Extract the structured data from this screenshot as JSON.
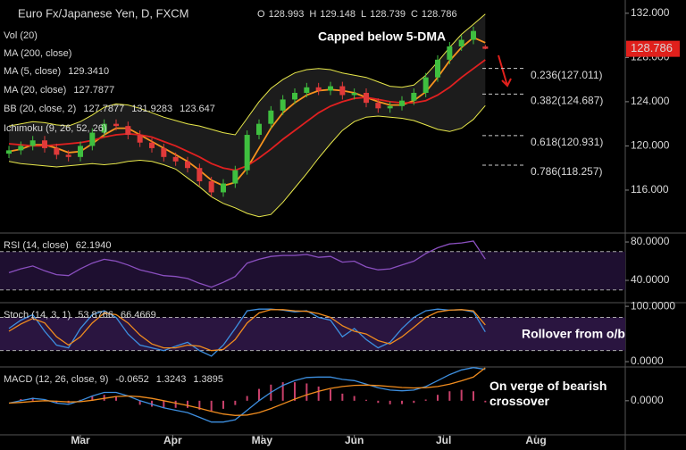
{
  "chart_data": [
    {
      "type": "candlestick",
      "title": "Euro Fx/Japanese Yen, D, FXCM",
      "ohlc_legend": [
        {
          "key": "O",
          "label": "128.993"
        },
        {
          "key": "H",
          "label": "129.148"
        },
        {
          "key": "L",
          "label": "128.739"
        },
        {
          "key": "C",
          "label": "128.786"
        }
      ],
      "last_price_label": "128.786",
      "indicators_off": [
        "Vol (20)",
        "MA (200, close)",
        "Ichimoku (9, 26, 52, 26)"
      ],
      "x": [
        36,
        40,
        44,
        48,
        52,
        56,
        60,
        64,
        68,
        72,
        76,
        80,
        84,
        88,
        92,
        96,
        100,
        104,
        108,
        112,
        116,
        120,
        124,
        128,
        132,
        136,
        140,
        144,
        148,
        152,
        156,
        160,
        164,
        168,
        172,
        176,
        180,
        184,
        188,
        192,
        196
      ],
      "xlim": [
        33,
        243
      ],
      "xticks": [
        {
          "value": 60,
          "label": "Mar"
        },
        {
          "value": 91,
          "label": "Apr"
        },
        {
          "value": 121,
          "label": "May"
        },
        {
          "value": 152,
          "label": "Jun"
        },
        {
          "value": 182,
          "label": "Jul"
        },
        {
          "value": 213,
          "label": "Aug"
        }
      ],
      "open": [
        119.3,
        119.6,
        120.0,
        120.5,
        119.8,
        119.2,
        119.0,
        120.0,
        121.2,
        122.0,
        121.8,
        121.0,
        120.3,
        119.8,
        119.0,
        118.6,
        118.0,
        116.8,
        115.8,
        116.6,
        117.8,
        121.0,
        122.0,
        123.2,
        124.2,
        124.8,
        125.3,
        125.0,
        125.4,
        124.6,
        124.8,
        123.9,
        123.4,
        123.6,
        124.1,
        124.8,
        126.2,
        127.8,
        129.0,
        129.6,
        128.993
      ],
      "high": [
        120.0,
        120.4,
        120.9,
        120.9,
        120.2,
        119.6,
        120.4,
        121.6,
        122.4,
        122.4,
        122.2,
        121.4,
        120.7,
        120.2,
        119.4,
        119.0,
        118.4,
        117.2,
        117.0,
        118.2,
        121.4,
        122.4,
        123.6,
        124.6,
        125.2,
        125.7,
        125.7,
        125.8,
        125.8,
        125.2,
        125.2,
        124.3,
        124.0,
        124.5,
        125.2,
        126.6,
        128.2,
        129.4,
        130.0,
        130.8,
        129.148
      ],
      "low": [
        118.9,
        119.2,
        119.6,
        119.4,
        118.8,
        118.6,
        118.6,
        119.6,
        120.8,
        121.4,
        120.6,
        119.9,
        119.4,
        118.6,
        118.2,
        117.6,
        116.4,
        115.4,
        115.4,
        116.2,
        117.4,
        120.6,
        121.6,
        122.8,
        123.8,
        124.4,
        124.6,
        124.6,
        124.2,
        124.2,
        123.5,
        123.0,
        123.0,
        123.2,
        123.7,
        124.4,
        125.8,
        127.4,
        128.6,
        129.2,
        128.739
      ],
      "close": [
        119.6,
        120.0,
        120.5,
        119.8,
        119.2,
        119.0,
        120.0,
        121.2,
        122.0,
        121.8,
        121.0,
        120.3,
        119.8,
        119.0,
        118.6,
        118.0,
        116.8,
        115.8,
        116.6,
        117.8,
        121.0,
        122.0,
        123.2,
        124.2,
        124.8,
        125.3,
        125.0,
        125.4,
        124.6,
        124.8,
        123.9,
        123.4,
        123.6,
        124.1,
        124.8,
        126.2,
        127.8,
        129.0,
        129.6,
        130.4,
        128.786
      ],
      "up_color": "#3fbf3f",
      "down_color": "#e03a3a",
      "overlays": [
        {
          "name": "MA (5, close)",
          "label": "129.3410",
          "color": "#f7931e",
          "values": [
            119.5,
            119.7,
            120.1,
            120.1,
            119.8,
            119.4,
            119.5,
            120.2,
            121.0,
            121.6,
            121.6,
            121.0,
            120.4,
            119.8,
            119.2,
            118.6,
            117.8,
            116.9,
            116.4,
            116.7,
            118.0,
            119.8,
            121.6,
            123.0,
            123.9,
            124.6,
            125.0,
            125.1,
            125.0,
            124.8,
            124.4,
            124.0,
            123.7,
            123.7,
            124.1,
            124.9,
            126.2,
            127.7,
            128.9,
            129.8,
            129.341
          ]
        },
        {
          "name": "MA (20, close)",
          "label": "127.7877",
          "color": "#e02020",
          "values": [
            120.2,
            120.1,
            120.0,
            120.0,
            120.1,
            120.2,
            120.3,
            120.5,
            120.8,
            121.0,
            121.1,
            121.0,
            120.8,
            120.4,
            120.0,
            119.5,
            119.0,
            118.4,
            118.0,
            117.8,
            118.2,
            118.9,
            119.7,
            120.6,
            121.4,
            122.2,
            123.0,
            123.6,
            124.0,
            124.3,
            124.4,
            124.2,
            124.0,
            123.9,
            123.9,
            124.1,
            124.6,
            125.3,
            126.2,
            127.0,
            127.7877
          ]
        }
      ],
      "bands": {
        "name": "BB (20, close, 2)",
        "labels": [
          "127.7877",
          "131.9283",
          "123.647"
        ],
        "color": "#e8e84a",
        "upper": [
          121.8,
          122.0,
          122.2,
          122.1,
          121.9,
          121.8,
          122.2,
          122.8,
          123.5,
          123.8,
          123.7,
          123.4,
          123.0,
          122.6,
          122.3,
          122.0,
          121.8,
          121.5,
          121.2,
          121.0,
          122.5,
          124.0,
          125.2,
          126.0,
          126.6,
          126.9,
          127.0,
          126.9,
          126.6,
          126.4,
          126.2,
          125.8,
          125.4,
          125.3,
          125.5,
          126.4,
          127.6,
          128.9,
          130.1,
          131.0,
          131.9283
        ],
        "lower": [
          118.6,
          118.4,
          118.3,
          118.2,
          118.1,
          118.2,
          118.3,
          118.4,
          118.3,
          118.4,
          118.6,
          118.7,
          118.6,
          118.3,
          117.9,
          117.1,
          116.3,
          115.4,
          114.8,
          114.4,
          113.9,
          113.6,
          113.8,
          114.9,
          116.2,
          117.5,
          118.9,
          120.2,
          121.4,
          122.2,
          122.6,
          122.7,
          122.6,
          122.5,
          122.3,
          121.9,
          121.5,
          121.3,
          121.6,
          122.4,
          123.647
        ]
      },
      "levels": [
        {
          "label": "0.236(127.011)",
          "value": 127.011
        },
        {
          "label": "0.382(124.687)",
          "value": 124.687
        },
        {
          "label": "0.618(120.931)",
          "value": 120.931
        },
        {
          "label": "0.786(118.257)",
          "value": 118.257
        }
      ],
      "annotation": "Capped below 5-DMA",
      "ylim": [
        112.2,
        133.2
      ],
      "yticks": [
        {
          "value": 116,
          "label": "116.000"
        },
        {
          "value": 120,
          "label": "120.000"
        },
        {
          "value": 124,
          "label": "124.000"
        },
        {
          "value": 128,
          "label": "128.000"
        },
        {
          "value": 132,
          "label": "132.000"
        }
      ]
    },
    {
      "type": "line",
      "title": "RSI (14, close)",
      "ylim": [
        17.7,
        88.4
      ],
      "yticks": [
        {
          "value": 40,
          "label": "40.0000"
        },
        {
          "value": 80,
          "label": "80.0000"
        }
      ],
      "bounds": [
        30,
        70
      ],
      "band_color": "#1e0f30",
      "series": [
        {
          "name": "RSI",
          "label": "62.1940",
          "color": "#8a4fbf",
          "values": [
            48,
            52,
            55,
            50,
            46,
            45,
            52,
            58,
            62,
            60,
            56,
            51,
            48,
            45,
            44,
            42,
            37,
            33,
            38,
            44,
            58,
            62,
            65,
            66,
            66,
            67,
            64,
            65,
            59,
            60,
            54,
            51,
            52,
            56,
            60,
            68,
            74,
            78,
            79,
            81,
            62.194
          ]
        }
      ]
    },
    {
      "type": "line",
      "title": "Stoch (14, 3, 1)",
      "ylim": [
        -8,
        105
      ],
      "yticks": [
        {
          "value": 0,
          "label": "0.0000"
        },
        {
          "value": 100,
          "label": "100.0000"
        }
      ],
      "bounds": [
        20,
        80
      ],
      "band_color": "#2a1540",
      "annotation": "Rollover from o/b",
      "series": [
        {
          "name": "%K",
          "label": "53.8766",
          "color": "#3d8fe0",
          "values": [
            60,
            75,
            85,
            55,
            30,
            25,
            60,
            85,
            92,
            80,
            50,
            30,
            25,
            20,
            28,
            35,
            20,
            10,
            30,
            60,
            92,
            95,
            95,
            93,
            90,
            92,
            80,
            75,
            45,
            60,
            40,
            25,
            35,
            60,
            80,
            92,
            95,
            93,
            94,
            90,
            53.8766
          ]
        },
        {
          "name": "%D",
          "label": "66.4669",
          "color": "#f08c1e",
          "values": [
            55,
            68,
            78,
            70,
            45,
            30,
            45,
            70,
            88,
            85,
            70,
            48,
            32,
            25,
            25,
            30,
            28,
            20,
            22,
            40,
            70,
            88,
            94,
            94,
            92,
            91,
            87,
            80,
            65,
            55,
            50,
            38,
            32,
            45,
            62,
            80,
            90,
            93,
            94,
            92,
            66.4669
          ]
        }
      ]
    },
    {
      "type": "macd",
      "title": "MACD (12, 26, close, 9)",
      "ylim": [
        -1.4,
        1.35
      ],
      "yticks": [
        {
          "value": 0,
          "label": "0.0000"
        }
      ],
      "annotation": "On verge of bearish crossover",
      "histogram": {
        "label": "-0.0652",
        "color": "#c8406a",
        "values": [
          0,
          0.07,
          0.13,
          0.05,
          -0.08,
          -0.1,
          0.04,
          0.18,
          0.25,
          0.17,
          0,
          -0.17,
          -0.25,
          -0.3,
          -0.3,
          -0.3,
          -0.38,
          -0.45,
          -0.34,
          -0.18,
          0.2,
          0.5,
          0.68,
          0.78,
          0.78,
          0.73,
          0.6,
          0.48,
          0.3,
          0.2,
          0.04,
          -0.09,
          -0.15,
          -0.14,
          -0.09,
          0.05,
          0.25,
          0.4,
          0.46,
          0.4,
          -0.0652
        ]
      },
      "series": [
        {
          "name": "MACD",
          "label": "1.3243",
          "color": "#3d8fe0",
          "values": [
            -0.1,
            0,
            0.1,
            0.05,
            -0.1,
            -0.15,
            0,
            0.2,
            0.35,
            0.35,
            0.2,
            0,
            -0.15,
            -0.3,
            -0.4,
            -0.5,
            -0.7,
            -0.9,
            -0.9,
            -0.8,
            -0.4,
            0,
            0.35,
            0.65,
            0.85,
            0.98,
            1.0,
            1.0,
            0.9,
            0.85,
            0.7,
            0.55,
            0.45,
            0.42,
            0.45,
            0.6,
            0.85,
            1.1,
            1.3,
            1.4,
            1.3243
          ]
        },
        {
          "name": "Signal",
          "label": "1.3895",
          "color": "#f08c1e",
          "values": [
            -0.1,
            -0.07,
            -0.03,
            0,
            -0.02,
            -0.05,
            -0.04,
            0.02,
            0.1,
            0.18,
            0.2,
            0.17,
            0.1,
            0,
            -0.1,
            -0.2,
            -0.32,
            -0.45,
            -0.56,
            -0.62,
            -0.6,
            -0.5,
            -0.33,
            -0.13,
            0.07,
            0.25,
            0.4,
            0.52,
            0.6,
            0.65,
            0.66,
            0.64,
            0.6,
            0.56,
            0.54,
            0.55,
            0.6,
            0.7,
            0.84,
            1.0,
            1.3895
          ]
        }
      ]
    }
  ]
}
